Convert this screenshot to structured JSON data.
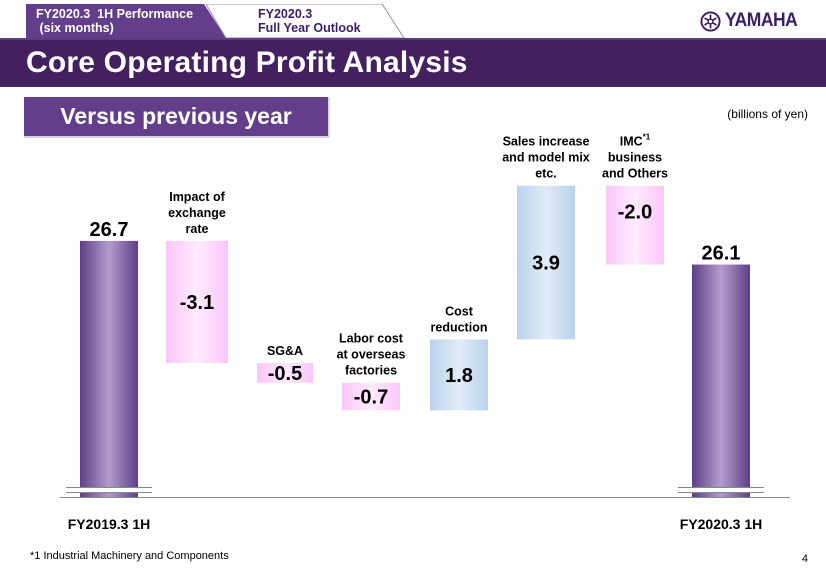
{
  "header": {
    "tabs": [
      {
        "label": "FY2020.3  1H Performance\n (six months)",
        "active": true
      },
      {
        "label": "FY2020.3\nFull Year Outlook",
        "active": false
      }
    ],
    "logo_text": "YAMAHA",
    "title": "Core Operating Profit Analysis"
  },
  "section": {
    "subtitle": "Versus previous year",
    "unit": "(billions of yen)"
  },
  "footer": {
    "footnote": "*1  Industrial Machinery and Components",
    "page_number": "4"
  },
  "colors": {
    "brand_purple": "#43205f",
    "total_bar": "#6b4c92",
    "negative_bar": "#fcd3fb",
    "positive_bar": "#c2d8ee"
  },
  "chart_data": {
    "type": "waterfall",
    "title": "Core Operating Profit Analysis — Versus previous year",
    "ylabel": "billions of yen",
    "axis_break": true,
    "categories": [
      "FY2019.3 1H",
      "Impact of exchange rate",
      "SG&A",
      "Labor cost at overseas factories",
      "Cost reduction",
      "Sales increase and model mix etc.",
      "IMC*1 business and Others",
      "FY2020.3 1H"
    ],
    "bars": [
      {
        "category": "FY2019.3 1H",
        "label_lines": [],
        "x_label": "FY2019.3 1H",
        "kind": "total",
        "value": 26.7,
        "value_label": "26.7"
      },
      {
        "category": "Impact of exchange rate",
        "label_lines": [
          "Impact  of",
          "exchange",
          "rate"
        ],
        "kind": "negative",
        "value": -3.1,
        "value_label": "-3.1"
      },
      {
        "category": "SG&A",
        "label_lines": [
          "SG&A"
        ],
        "kind": "negative",
        "value": -0.5,
        "value_label": "-0.5"
      },
      {
        "category": "Labor cost at overseas factories",
        "label_lines": [
          "Labor  cost",
          "at overseas",
          "factories"
        ],
        "kind": "negative",
        "value": -0.7,
        "value_label": "-0.7"
      },
      {
        "category": "Cost reduction",
        "label_lines": [
          "Cost",
          "reduction"
        ],
        "kind": "positive",
        "value": 1.8,
        "value_label": "1.8"
      },
      {
        "category": "Sales increase and model mix etc.",
        "label_lines": [
          "Sales  increase",
          "and  model  mix",
          "etc."
        ],
        "kind": "positive",
        "value": 3.9,
        "value_label": "3.9"
      },
      {
        "category": "IMC*1 business and Others",
        "label_lines": [
          "IMC",
          "business",
          "and  Others"
        ],
        "superscript": "*1",
        "kind": "negative",
        "value": -2.0,
        "value_label": "-2.0"
      },
      {
        "category": "FY2020.3 1H",
        "label_lines": [],
        "x_label": "FY2020.3 1H",
        "kind": "total",
        "value": 26.1,
        "value_label": "26.1"
      }
    ],
    "ylim": [
      20.2,
      31.0
    ],
    "grid": false,
    "legend": "none"
  }
}
